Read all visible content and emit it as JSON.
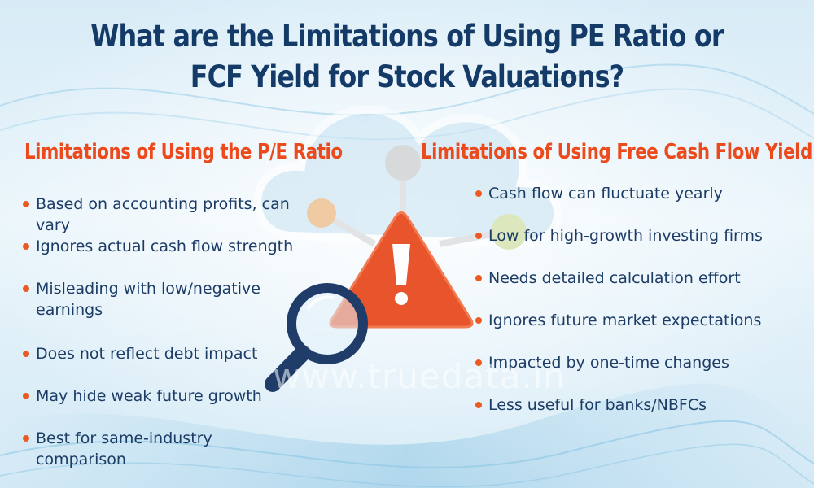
{
  "title": {
    "line1": "What are the Limitations of Using PE Ratio or",
    "line2": "FCF Yield for Stock Valuations?"
  },
  "pe_section": {
    "heading": "Limitations of Using the P/E Ratio",
    "items": [
      {
        "text": "Based on accounting profits, can vary"
      },
      {
        "text": "Ignores actual cash flow strength"
      },
      {
        "text": "Misleading with low/negative earnings"
      },
      {
        "text": "Does not reflect debt impact"
      },
      {
        "text": "May hide weak future growth"
      },
      {
        "text": "Best for same-industry comparison"
      }
    ]
  },
  "fcf_section": {
    "heading": "Limitations of Using Free Cash Flow Yield",
    "items": [
      {
        "text": "Cash flow can fluctuate yearly"
      },
      {
        "text": "Low for high-growth investing firms"
      },
      {
        "text": "Needs detailed calculation effort"
      },
      {
        "text": "Ignores future market expectations"
      },
      {
        "text": "Impacted by one-time changes"
      },
      {
        "text": "Less useful for banks/NBFCs"
      }
    ]
  },
  "watermark": "www.truedata.in",
  "icons": [
    "cloud-icon",
    "warning-triangle-icon",
    "magnifying-glass-icon"
  ],
  "colors": {
    "title": "#143a68",
    "heading": "#ec4a1c",
    "bullet": "#ec5a23",
    "text": "#1c3c66",
    "warning": "#e8542c"
  }
}
